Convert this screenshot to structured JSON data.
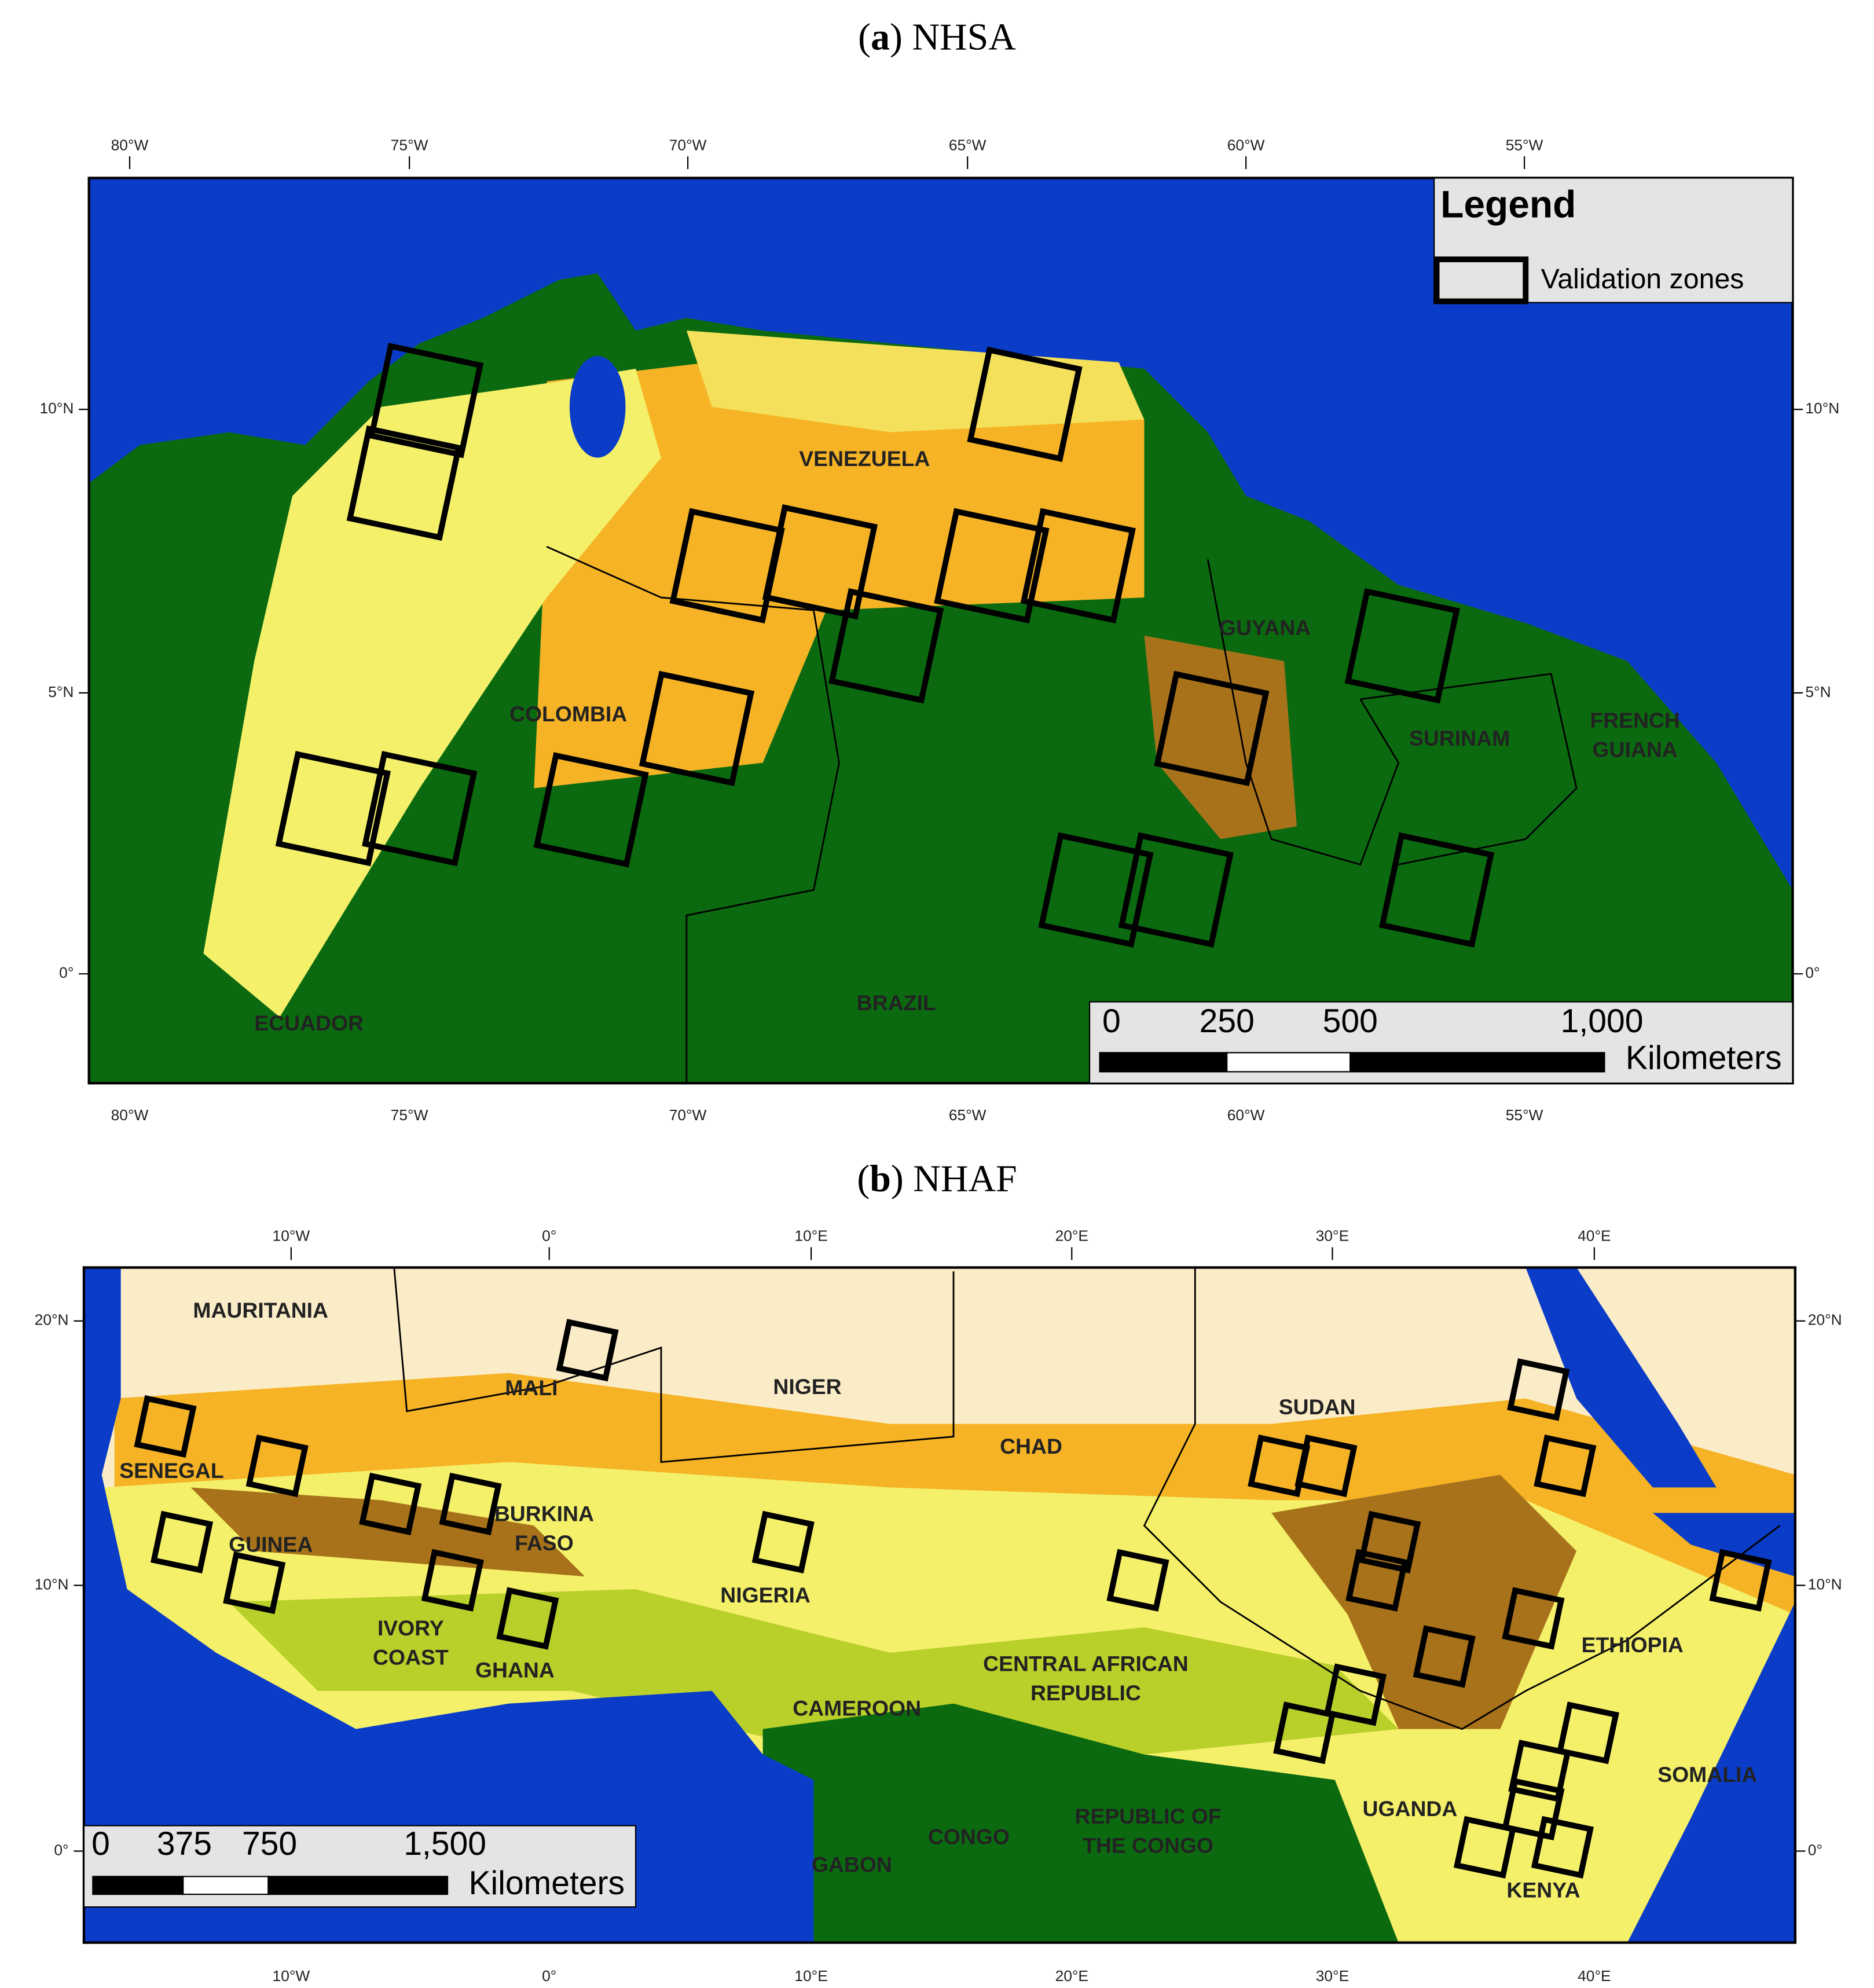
{
  "panels": [
    {
      "title": [
        "(",
        "a",
        ") NHSA"
      ],
      "top_ticks": [
        "80°W",
        "75°W",
        "70°W",
        "65°W",
        "60°W",
        "55°W"
      ],
      "side_ticks": [
        "10°N",
        "5°N",
        "0°"
      ],
      "countries": [
        [
          "VENEZUELA"
        ],
        [
          "COLOMBIA"
        ],
        [
          "GUYANA"
        ],
        [
          "SURINAM"
        ],
        [
          "FRENCH",
          "GUIANA"
        ],
        [
          "BRAZIL"
        ],
        [
          "ECUADOR"
        ]
      ],
      "legend": {
        "title": "Legend",
        "entry": "Validation zones"
      },
      "scale": {
        "labels": [
          "0",
          "250",
          "500",
          "1,000"
        ],
        "unit": "Kilometers"
      }
    },
    {
      "title": [
        "(",
        "b",
        ") NHAF"
      ],
      "top_ticks": [
        "10°W",
        "0°",
        "10°E",
        "20°E",
        "30°E",
        "40°E"
      ],
      "side_ticks": [
        "20°N",
        "10°N",
        "0°"
      ],
      "countries": [
        [
          "MAURITANIA"
        ],
        [
          "MALI"
        ],
        [
          "NIGER"
        ],
        [
          "CHAD"
        ],
        [
          "SUDAN"
        ],
        [
          "SENEGAL"
        ],
        [
          "BURKINA",
          "FASO"
        ],
        [
          "GUINEA"
        ],
        [
          "NIGERIA"
        ],
        [
          "IVORY",
          "COAST"
        ],
        [
          "GHANA"
        ],
        [
          "ETHIOPIA"
        ],
        [
          "CENTRAL AFRICAN",
          "REPUBLIC"
        ],
        [
          "CAMEROON"
        ],
        [
          "SOMALIA"
        ],
        [
          "REPUBLIC OF",
          "THE CONGO"
        ],
        [
          "UGANDA"
        ],
        [
          "CONGO"
        ],
        [
          "GABON"
        ],
        [
          "KENYA"
        ]
      ],
      "scale": {
        "labels": [
          "0",
          "375",
          "750",
          "1,500"
        ],
        "unit": "Kilometers"
      }
    }
  ]
}
